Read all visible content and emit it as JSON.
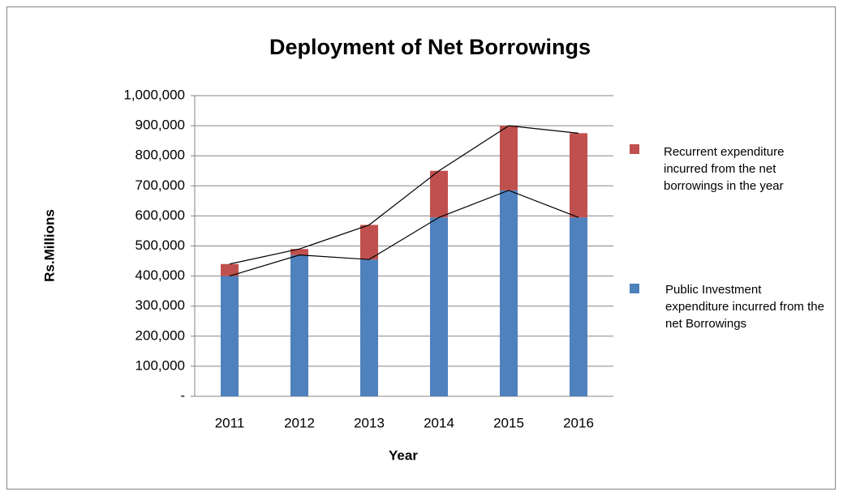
{
  "chart_data": {
    "type": "bar",
    "stacked": true,
    "series_lines": true,
    "title": "Deployment of Net Borrowings",
    "x_label": "Year",
    "y_label": "Rs.Millions",
    "categories": [
      "2011",
      "2012",
      "2013",
      "2014",
      "2015",
      "2016"
    ],
    "series": [
      {
        "name": "Public Investment expenditure incurred from the net Borrowings",
        "color": "#4f81bd",
        "values": [
          400000,
          470000,
          455000,
          595000,
          685000,
          595000
        ]
      },
      {
        "name": "Recurrent expenditure incurred from the net borrowings in the year",
        "color": "#c0504d",
        "values": [
          40000,
          20000,
          115000,
          155000,
          215000,
          280000
        ]
      }
    ],
    "ylim": [
      0,
      1000000
    ],
    "yticks": [
      {
        "value": 0,
        "label": "-"
      },
      {
        "value": 100000,
        "label": "100,000"
      },
      {
        "value": 200000,
        "label": "200,000"
      },
      {
        "value": 300000,
        "label": "300,000"
      },
      {
        "value": 400000,
        "label": "400,000"
      },
      {
        "value": 500000,
        "label": "500,000"
      },
      {
        "value": 600000,
        "label": "600,000"
      },
      {
        "value": 700000,
        "label": "700,000"
      },
      {
        "value": 800000,
        "label": "800,000"
      },
      {
        "value": 900000,
        "label": "900,000"
      },
      {
        "value": 1000000,
        "label": "1,000,000"
      }
    ],
    "grid": true,
    "legend": "right"
  }
}
